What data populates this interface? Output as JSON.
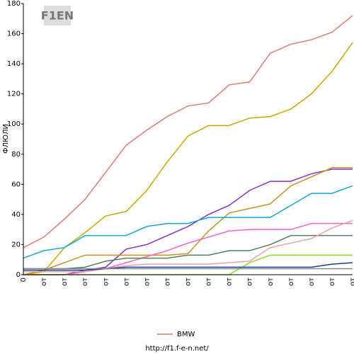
{
  "chart_data": {
    "type": "line",
    "logo": "F1EN",
    "ylabel": "ФЛЮЛИ",
    "footer": "http://f1.f-e-n.net/",
    "categories": [
      "0",
      "от",
      "от",
      "от",
      "от",
      "от",
      "от",
      "от",
      "от",
      "от",
      "от",
      "от",
      "от",
      "от",
      "от",
      "от",
      "от"
    ],
    "ylim": [
      0,
      180
    ],
    "yticks": [
      0,
      20,
      40,
      60,
      80,
      100,
      120,
      140,
      160,
      180
    ],
    "series": [
      {
        "name": "BMW",
        "color": "#e07a70",
        "values": [
          18,
          25,
          37,
          50,
          68,
          86,
          96,
          105,
          112,
          114,
          126,
          128,
          147,
          153,
          156,
          161,
          172
        ]
      },
      {
        "color": "#c8a800",
        "values": [
          0,
          2,
          18,
          28,
          39,
          42,
          56,
          75,
          92,
          99,
          99,
          104,
          105,
          110,
          120,
          135,
          154
        ]
      },
      {
        "color": "#8a2ec8",
        "values": [
          0,
          0,
          0,
          3,
          5,
          17,
          20,
          26,
          32,
          40,
          46,
          56,
          62,
          62,
          67,
          70,
          70
        ]
      },
      {
        "color": "#c89020",
        "values": [
          0,
          3,
          8,
          13,
          13,
          13,
          13,
          13,
          14,
          29,
          41,
          44,
          47,
          59,
          65,
          71,
          71
        ]
      },
      {
        "color": "#10a8d8",
        "values": [
          11,
          16,
          18,
          26,
          26,
          26,
          32,
          34,
          34,
          38,
          38,
          38,
          38,
          46,
          54,
          54,
          59
        ]
      },
      {
        "color": "#ff60c0",
        "values": [
          0,
          0,
          0,
          2,
          4,
          8,
          12,
          16,
          21,
          25,
          29,
          30,
          30,
          30,
          34,
          34,
          34
        ]
      },
      {
        "color": "#508060",
        "values": [
          4,
          4,
          4,
          5,
          9,
          11,
          11,
          11,
          13,
          13,
          16,
          16,
          20,
          26,
          26,
          26,
          26
        ]
      },
      {
        "color": "#f0a0a0",
        "values": [
          2,
          2,
          2,
          2,
          4,
          6,
          7,
          7,
          7,
          7,
          8,
          9,
          18,
          21,
          24,
          31,
          36
        ]
      },
      {
        "color": "#80e020",
        "values": [
          0,
          0,
          0,
          0,
          0,
          0,
          0,
          0,
          0,
          0,
          0,
          8,
          13,
          13,
          13,
          13,
          13
        ]
      },
      {
        "color": "#1040a0",
        "values": [
          3,
          3,
          3,
          3,
          4,
          5,
          5,
          5,
          5,
          5,
          5,
          5,
          5,
          5,
          5,
          7,
          8
        ]
      },
      {
        "color": "#888888",
        "values": [
          4,
          4,
          4,
          4,
          4,
          4,
          4,
          4,
          4,
          4,
          4,
          4,
          4,
          4,
          4,
          4,
          4
        ]
      }
    ]
  }
}
